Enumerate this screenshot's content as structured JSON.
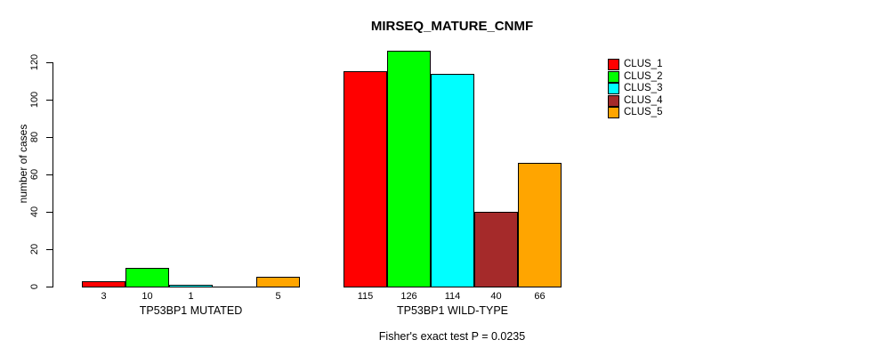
{
  "chart_data": {
    "type": "bar",
    "title": "MIRSEQ_MATURE_CNMF",
    "ylabel": "number of cases",
    "xlabel": "",
    "yticks": [
      0,
      20,
      40,
      60,
      80,
      100,
      120
    ],
    "ylim": [
      0,
      130
    ],
    "grid": false,
    "legend_position": "right",
    "legend": [
      {
        "label": "CLUS_1",
        "color": "#FF0000"
      },
      {
        "label": "CLUS_2",
        "color": "#00FF00"
      },
      {
        "label": "CLUS_3",
        "color": "#00FFFF"
      },
      {
        "label": "CLUS_4",
        "color": "#A52A2A"
      },
      {
        "label": "CLUS_5",
        "color": "#FFA500"
      }
    ],
    "groups": [
      {
        "label": "TP53BP1 MUTATED",
        "values": [
          3,
          10,
          1,
          0,
          5
        ],
        "bar_labels": [
          "3",
          "10",
          "1",
          "",
          "5"
        ]
      },
      {
        "label": "TP53BP1 WILD-TYPE",
        "values": [
          115,
          126,
          114,
          40,
          66
        ],
        "bar_labels": [
          "115",
          "126",
          "114",
          "40",
          "66"
        ]
      }
    ],
    "annotation": "Fisher's exact test P = 0.0235"
  }
}
